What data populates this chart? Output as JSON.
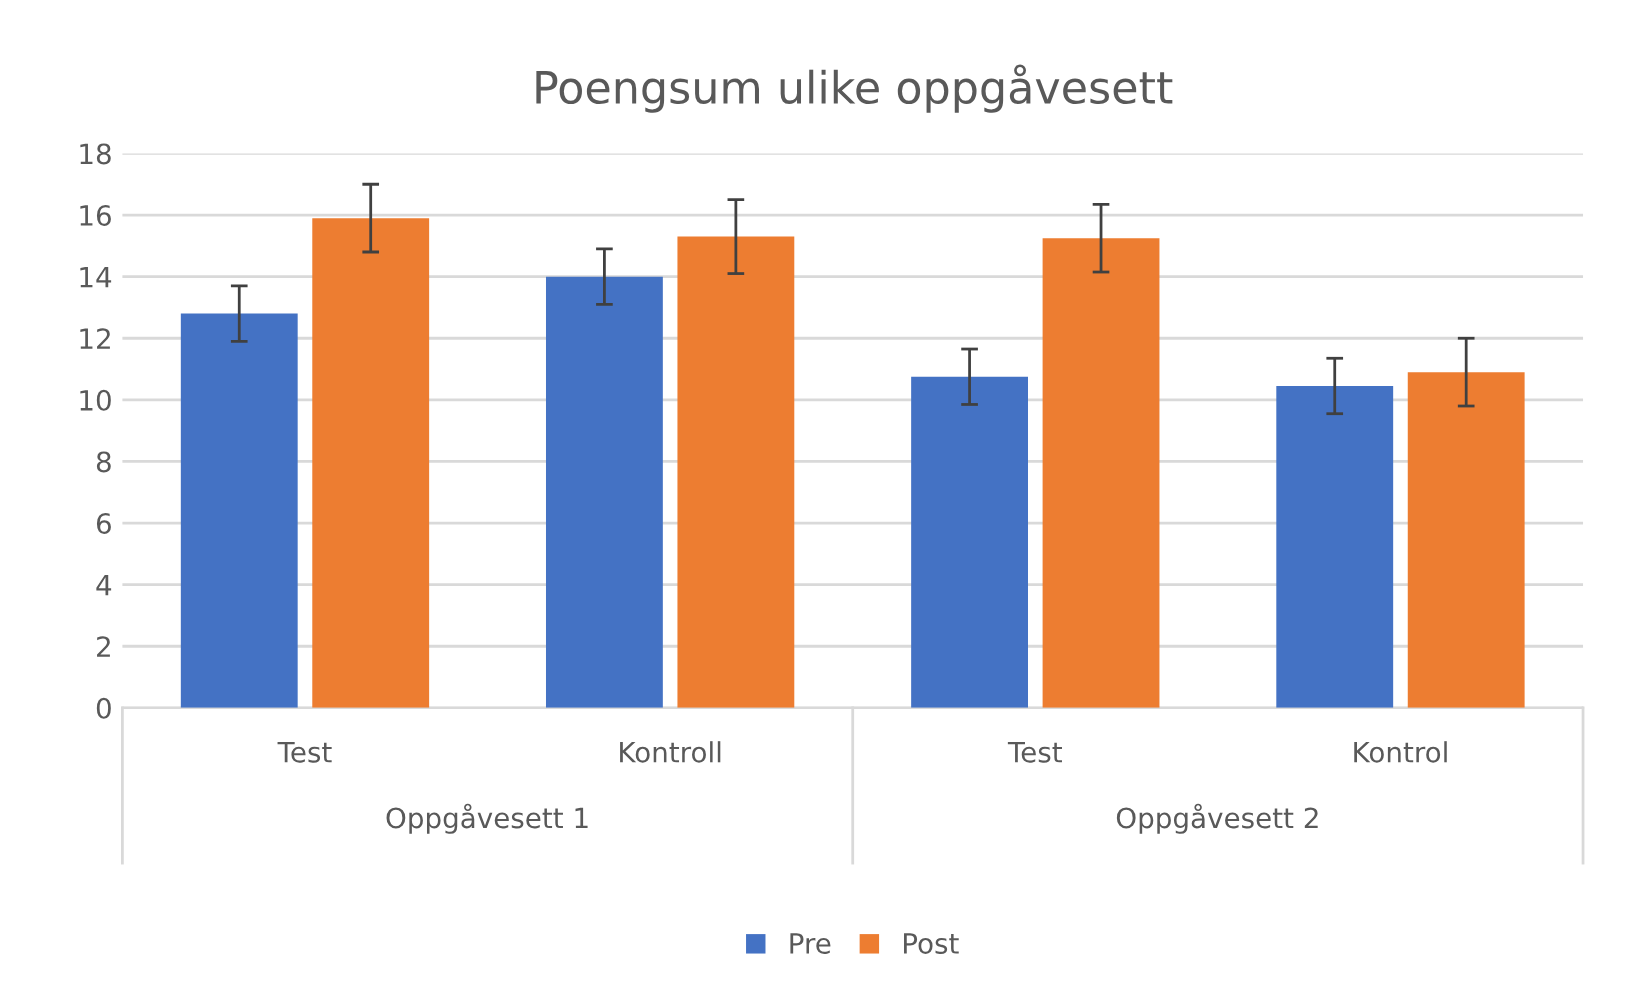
{
  "chart_data": {
    "type": "bar",
    "title": "Poengsum ulike oppgåvesett",
    "categories": [
      "Test",
      "Kontroll",
      "Test",
      "Kontrol"
    ],
    "series": [
      {
        "name": "Pre",
        "color": "#4472c4",
        "values": [
          12.8,
          14.0,
          10.75,
          10.45
        ],
        "errors": [
          0.9,
          0.9,
          0.9,
          0.9
        ]
      },
      {
        "name": "Post",
        "color": "#ed7d31",
        "values": [
          15.9,
          15.3,
          15.25,
          10.9
        ],
        "errors": [
          1.1,
          1.2,
          1.1,
          1.1
        ]
      }
    ],
    "annotations": [
      "Oppgåvesett 1",
      "Oppgåvesett 2"
    ],
    "ylim": [
      0,
      18
    ],
    "yticks": [
      0,
      2,
      4,
      6,
      8,
      10,
      12,
      14,
      16,
      18
    ],
    "grid": "y",
    "legend": "bottom"
  }
}
